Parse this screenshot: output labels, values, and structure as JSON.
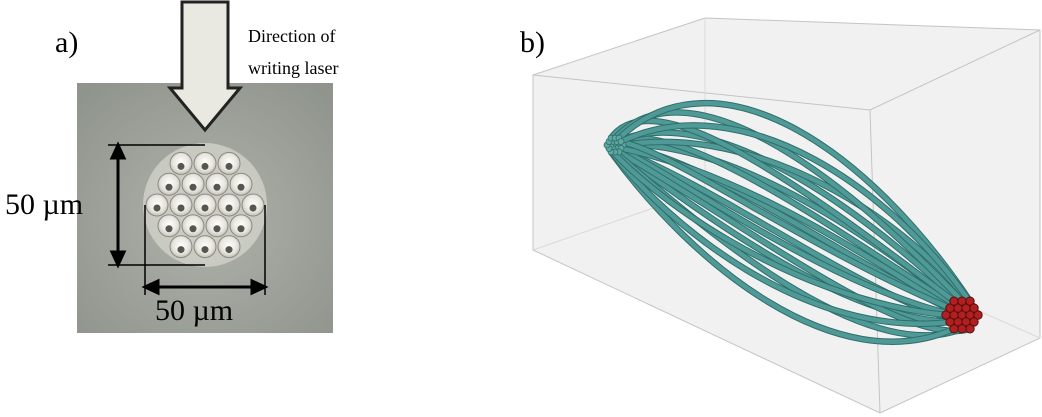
{
  "panels": [
    {
      "label": "a)",
      "annotation": [
        "Direction of",
        "writing laser"
      ],
      "scale_vertical": "50 µm",
      "scale_horizontal": "50 µm"
    },
    {
      "label": "b)"
    }
  ]
}
